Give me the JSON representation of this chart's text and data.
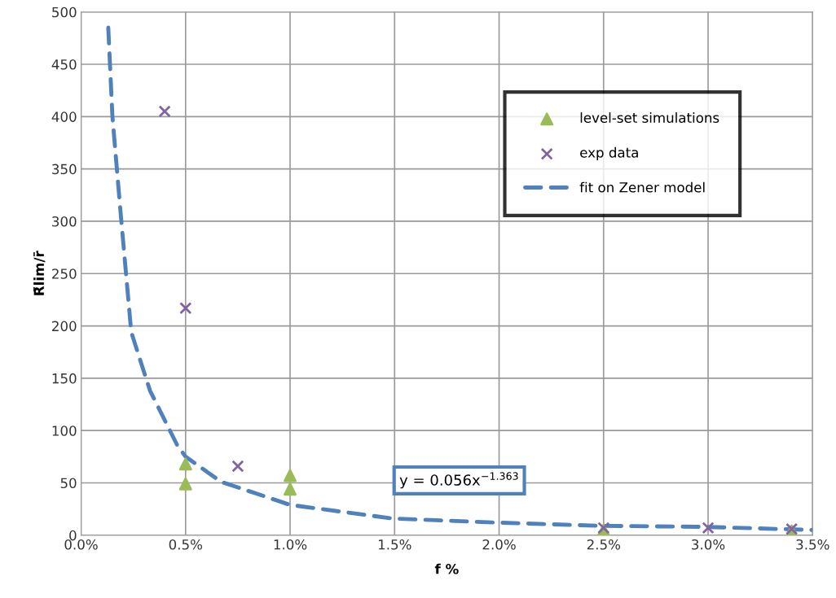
{
  "chart_data": {
    "type": "scatter",
    "xlabel": "f %",
    "ylabel": "R̄lim/r̄",
    "xlim": [
      0,
      3.5
    ],
    "ylim": [
      0,
      500
    ],
    "xticks": [
      {
        "value": 0,
        "label": "0.0%"
      },
      {
        "value": 0.5,
        "label": "0.5%"
      },
      {
        "value": 1.0,
        "label": "1.0%"
      },
      {
        "value": 1.5,
        "label": "1.5%"
      },
      {
        "value": 2.0,
        "label": "2.0%"
      },
      {
        "value": 2.5,
        "label": "2.5%"
      },
      {
        "value": 3.0,
        "label": "3.0%"
      },
      {
        "value": 3.5,
        "label": "3.5%"
      }
    ],
    "yticks": [
      0,
      50,
      100,
      150,
      200,
      250,
      300,
      350,
      400,
      450,
      500
    ],
    "grid": true,
    "legend": "top right",
    "series": [
      {
        "name": "level-set simulations",
        "marker": "triangle",
        "color": "#9bbb59",
        "x": [
          0.5,
          0.5,
          1.0,
          1.0,
          2.5,
          3.4
        ],
        "values": [
          68,
          49,
          57,
          44,
          5,
          4
        ]
      },
      {
        "name": "exp data",
        "marker": "cross",
        "color": "#8064a2",
        "x": [
          0.4,
          0.5,
          0.75,
          2.5,
          3.0,
          3.4
        ],
        "values": [
          405,
          217,
          66,
          7,
          7,
          6
        ]
      },
      {
        "name": "fit on Zener model",
        "type": "line",
        "marker": "none",
        "line_style": "dashed",
        "color": "#4f81bd",
        "x": [
          0.13,
          0.15,
          0.19,
          0.24,
          0.33,
          0.46,
          0.5,
          0.67,
          1.0,
          1.49,
          2.0,
          2.48,
          2.98,
          3.5
        ],
        "values": [
          485,
          400,
          306,
          194,
          138,
          86,
          75,
          51,
          29,
          16,
          12,
          9,
          8,
          5
        ]
      }
    ],
    "annotations": [
      "y = 0.056x$^{−1.363}$"
    ]
  }
}
